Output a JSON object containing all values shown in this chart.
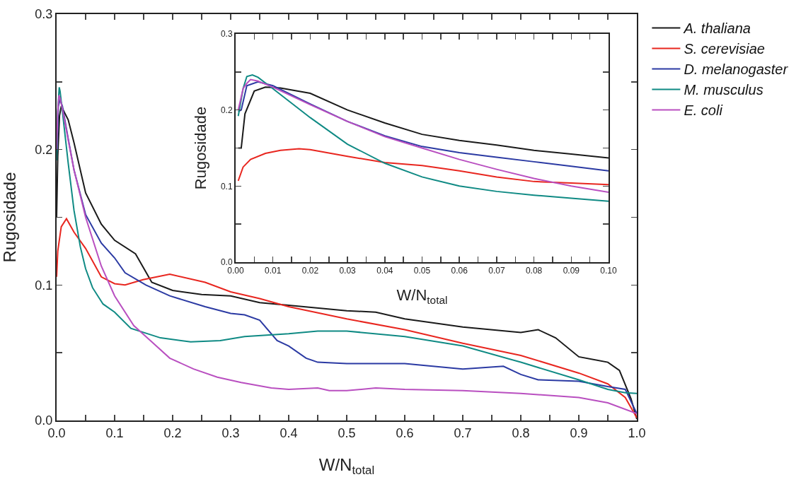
{
  "chart_data": [
    {
      "type": "line",
      "xlabel": "W/N$_{total}$",
      "ylabel": "Rugosidade",
      "legend": "right",
      "xlim": [
        0,
        1
      ],
      "ylim": [
        0,
        0.3
      ],
      "xticks": [
        {
          "value": 0,
          "label": "0.0"
        },
        {
          "value": 0.05,
          "label": null
        },
        {
          "value": 0.1,
          "label": "0.1"
        },
        {
          "value": 0.15,
          "label": null
        },
        {
          "value": 0.2,
          "label": "0.2"
        },
        {
          "value": 0.25,
          "label": null
        },
        {
          "value": 0.3,
          "label": "0.3"
        },
        {
          "value": 0.35,
          "label": null
        },
        {
          "value": 0.4,
          "label": "0.4"
        },
        {
          "value": 0.45,
          "label": null
        },
        {
          "value": 0.5,
          "label": "0.5"
        },
        {
          "value": 0.55,
          "label": null
        },
        {
          "value": 0.6,
          "label": "0.6"
        },
        {
          "value": 0.65,
          "label": null
        },
        {
          "value": 0.7,
          "label": "0.7"
        },
        {
          "value": 0.75,
          "label": null
        },
        {
          "value": 0.8,
          "label": "0.8"
        },
        {
          "value": 0.85,
          "label": null
        },
        {
          "value": 0.9,
          "label": "0.9"
        },
        {
          "value": 0.95,
          "label": null
        },
        {
          "value": 1,
          "label": "1.0"
        }
      ],
      "yticks": [
        {
          "value": 0,
          "label": "0.0"
        },
        {
          "value": 0.05,
          "label": null
        },
        {
          "value": 0.1,
          "label": "0.1"
        },
        {
          "value": 0.15,
          "label": null
        },
        {
          "value": 0.2,
          "label": "0.2"
        },
        {
          "value": 0.25,
          "label": null
        },
        {
          "value": 0.3,
          "label": "0.3"
        }
      ],
      "series": [
        {
          "name": "A. thaliana",
          "color": "#1a1a1a",
          "x": [
            0,
            0.002,
            0.005,
            0.008,
            0.02,
            0.03,
            0.05,
            0.077,
            0.1,
            0.136,
            0.164,
            0.2,
            0.25,
            0.3,
            0.35,
            0.4,
            0.5,
            0.55,
            0.6,
            0.7,
            0.8,
            0.83,
            0.86,
            0.9,
            0.95,
            0.97,
            0.99,
            1.0
          ],
          "values": [
            0.15,
            0.195,
            0.225,
            0.232,
            0.222,
            0.205,
            0.168,
            0.145,
            0.133,
            0.123,
            0.102,
            0.096,
            0.093,
            0.092,
            0.087,
            0.085,
            0.081,
            0.08,
            0.075,
            0.069,
            0.065,
            0.067,
            0.061,
            0.047,
            0.043,
            0.037,
            0.016,
            0.001
          ]
        },
        {
          "name": "S. cerevisiae",
          "color": "#e8261f",
          "x": [
            0,
            0.002,
            0.008,
            0.017,
            0.03,
            0.05,
            0.077,
            0.1,
            0.118,
            0.149,
            0.195,
            0.256,
            0.3,
            0.35,
            0.4,
            0.5,
            0.6,
            0.7,
            0.8,
            0.9,
            0.95,
            0.98,
            1.0
          ],
          "values": [
            0.106,
            0.125,
            0.143,
            0.149,
            0.139,
            0.127,
            0.106,
            0.101,
            0.1,
            0.104,
            0.108,
            0.102,
            0.095,
            0.09,
            0.084,
            0.075,
            0.067,
            0.057,
            0.048,
            0.035,
            0.027,
            0.017,
            0.002
          ]
        },
        {
          "name": "D. melanogaster",
          "color": "#2b3aa3",
          "x": [
            0,
            0.001,
            0.003,
            0.006,
            0.01,
            0.02,
            0.03,
            0.05,
            0.077,
            0.1,
            0.118,
            0.154,
            0.195,
            0.256,
            0.3,
            0.324,
            0.35,
            0.38,
            0.4,
            0.43,
            0.45,
            0.5,
            0.6,
            0.7,
            0.77,
            0.8,
            0.83,
            0.9,
            0.95,
            0.98,
            1.0
          ],
          "values": [
            0.198,
            0.2,
            0.232,
            0.237,
            0.232,
            0.208,
            0.185,
            0.152,
            0.131,
            0.12,
            0.109,
            0.1,
            0.092,
            0.084,
            0.079,
            0.078,
            0.074,
            0.059,
            0.055,
            0.046,
            0.043,
            0.042,
            0.042,
            0.038,
            0.04,
            0.034,
            0.03,
            0.029,
            0.025,
            0.023,
            0.005
          ]
        },
        {
          "name": "M. musculus",
          "color": "#0f8a84",
          "x": [
            0,
            0.002,
            0.0045,
            0.006,
            0.01,
            0.02,
            0.03,
            0.041,
            0.05,
            0.062,
            0.08,
            0.1,
            0.128,
            0.179,
            0.231,
            0.282,
            0.324,
            0.4,
            0.45,
            0.5,
            0.6,
            0.7,
            0.8,
            0.9,
            0.95,
            0.98,
            1.0
          ],
          "values": [
            0.192,
            0.228,
            0.246,
            0.243,
            0.228,
            0.19,
            0.155,
            0.128,
            0.112,
            0.098,
            0.086,
            0.08,
            0.068,
            0.061,
            0.058,
            0.059,
            0.062,
            0.064,
            0.066,
            0.066,
            0.062,
            0.055,
            0.043,
            0.03,
            0.023,
            0.0205,
            0.02
          ]
        },
        {
          "name": "E. coli",
          "color": "#b94fc0",
          "x": [
            0,
            0.002,
            0.004,
            0.006,
            0.01,
            0.02,
            0.03,
            0.05,
            0.077,
            0.1,
            0.133,
            0.164,
            0.195,
            0.236,
            0.277,
            0.318,
            0.37,
            0.4,
            0.45,
            0.47,
            0.5,
            0.55,
            0.6,
            0.7,
            0.8,
            0.9,
            0.95,
            1.0
          ],
          "values": [
            0.2,
            0.228,
            0.24,
            0.238,
            0.23,
            0.207,
            0.185,
            0.15,
            0.114,
            0.092,
            0.07,
            0.058,
            0.046,
            0.038,
            0.032,
            0.028,
            0.024,
            0.023,
            0.024,
            0.022,
            0.022,
            0.024,
            0.023,
            0.022,
            0.02,
            0.017,
            0.013,
            0.005
          ]
        }
      ]
    },
    {
      "type": "line",
      "xlabel": "W/N$_{total}$",
      "ylabel": "Rugosidade",
      "xlim": [
        0,
        0.1
      ],
      "ylim": [
        0,
        0.3
      ],
      "xticks": [
        {
          "value": 0,
          "label": "0.00"
        },
        {
          "value": 0.005,
          "label": null
        },
        {
          "value": 0.01,
          "label": "0.01"
        },
        {
          "value": 0.015,
          "label": null
        },
        {
          "value": 0.02,
          "label": "0.02"
        },
        {
          "value": 0.025,
          "label": null
        },
        {
          "value": 0.03,
          "label": "0.03"
        },
        {
          "value": 0.035,
          "label": null
        },
        {
          "value": 0.04,
          "label": "0.04"
        },
        {
          "value": 0.045,
          "label": null
        },
        {
          "value": 0.05,
          "label": "0.05"
        },
        {
          "value": 0.055,
          "label": null
        },
        {
          "value": 0.06,
          "label": "0.06"
        },
        {
          "value": 0.065,
          "label": null
        },
        {
          "value": 0.07,
          "label": "0.07"
        },
        {
          "value": 0.075,
          "label": null
        },
        {
          "value": 0.08,
          "label": "0.08"
        },
        {
          "value": 0.085,
          "label": null
        },
        {
          "value": 0.09,
          "label": "0.09"
        },
        {
          "value": 0.095,
          "label": null
        },
        {
          "value": 0.1,
          "label": "0.10"
        }
      ],
      "yticks": [
        {
          "value": 0,
          "label": "0.0"
        },
        {
          "value": 0.05,
          "label": null
        },
        {
          "value": 0.1,
          "label": "0.1"
        },
        {
          "value": 0.15,
          "label": null
        },
        {
          "value": 0.2,
          "label": "0.2"
        },
        {
          "value": 0.25,
          "label": null
        },
        {
          "value": 0.3,
          "label": "0.3"
        }
      ],
      "series": [
        {
          "color": "#1a1a1a",
          "x": [
            0.0007,
            0.0015,
            0.0025,
            0.005,
            0.008,
            0.012,
            0.02,
            0.03,
            0.04,
            0.05,
            0.06,
            0.07,
            0.08,
            0.09,
            0.1
          ],
          "values": [
            0.15,
            0.15,
            0.195,
            0.225,
            0.23,
            0.229,
            0.222,
            0.2,
            0.183,
            0.168,
            0.16,
            0.154,
            0.147,
            0.142,
            0.137
          ]
        },
        {
          "color": "#e8261f",
          "x": [
            0.0007,
            0.002,
            0.004,
            0.008,
            0.012,
            0.017,
            0.02,
            0.03,
            0.04,
            0.05,
            0.06,
            0.07,
            0.08,
            0.09,
            0.1
          ],
          "values": [
            0.107,
            0.125,
            0.135,
            0.143,
            0.147,
            0.149,
            0.148,
            0.139,
            0.131,
            0.127,
            0.12,
            0.112,
            0.106,
            0.104,
            0.102
          ]
        },
        {
          "color": "#2b3aa3",
          "x": [
            0.0007,
            0.0015,
            0.003,
            0.006,
            0.01,
            0.02,
            0.03,
            0.04,
            0.05,
            0.06,
            0.07,
            0.08,
            0.09,
            0.1
          ],
          "values": [
            0.198,
            0.2,
            0.232,
            0.237,
            0.232,
            0.208,
            0.185,
            0.166,
            0.152,
            0.144,
            0.138,
            0.132,
            0.126,
            0.12
          ]
        },
        {
          "color": "#0f8a84",
          "x": [
            0.0007,
            0.002,
            0.003,
            0.0045,
            0.006,
            0.01,
            0.02,
            0.03,
            0.04,
            0.05,
            0.06,
            0.07,
            0.08,
            0.09,
            0.1
          ],
          "values": [
            0.192,
            0.228,
            0.244,
            0.246,
            0.243,
            0.228,
            0.19,
            0.155,
            0.13,
            0.112,
            0.1,
            0.093,
            0.088,
            0.084,
            0.08
          ]
        },
        {
          "color": "#b94fc0",
          "x": [
            0.0007,
            0.002,
            0.003,
            0.004,
            0.006,
            0.01,
            0.02,
            0.03,
            0.04,
            0.05,
            0.06,
            0.07,
            0.08,
            0.09,
            0.1
          ],
          "values": [
            0.2,
            0.228,
            0.235,
            0.24,
            0.238,
            0.23,
            0.207,
            0.185,
            0.165,
            0.15,
            0.135,
            0.122,
            0.11,
            0.1,
            0.092
          ]
        }
      ]
    }
  ]
}
